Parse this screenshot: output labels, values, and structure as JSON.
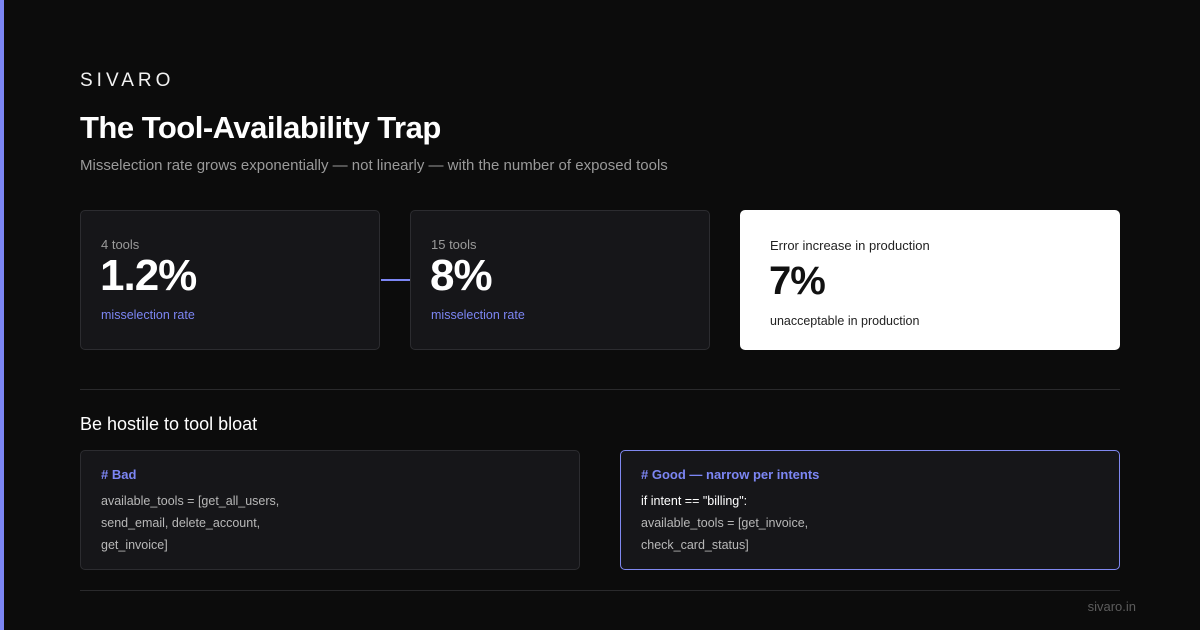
{
  "brand": "SIVARO",
  "title": "The Tool-Availability Trap",
  "subtitle": "Misselection rate grows exponentially — not linearly — with the number of exposed tools",
  "stats": [
    {
      "caption": "4 tools",
      "value": "1.2%",
      "unit": "misselection rate"
    },
    {
      "caption": "15 tools",
      "value": "8%",
      "unit": "misselection rate"
    }
  ],
  "highlight": {
    "caption": "Error increase in production",
    "value": "7%",
    "unit": "unacceptable in production"
  },
  "section_title": "Be hostile to tool bloat",
  "code_bad": {
    "heading": "# Bad",
    "lines": [
      "available_tools = [get_all_users,",
      "send_email, delete_account,",
      "get_invoice]"
    ]
  },
  "code_good": {
    "heading": "# Good — narrow per intents",
    "lines": [
      "if intent == \"billing\":",
      "available_tools = [get_invoice,",
      "check_card_status]"
    ]
  },
  "footer": "sivaro.in",
  "colors": {
    "accent": "#7c86f4",
    "background": "#0c0c0c",
    "card": "#161619",
    "highlight_card": "#ffffff"
  },
  "icons": {
    "arrow": "arrow-right-icon"
  }
}
